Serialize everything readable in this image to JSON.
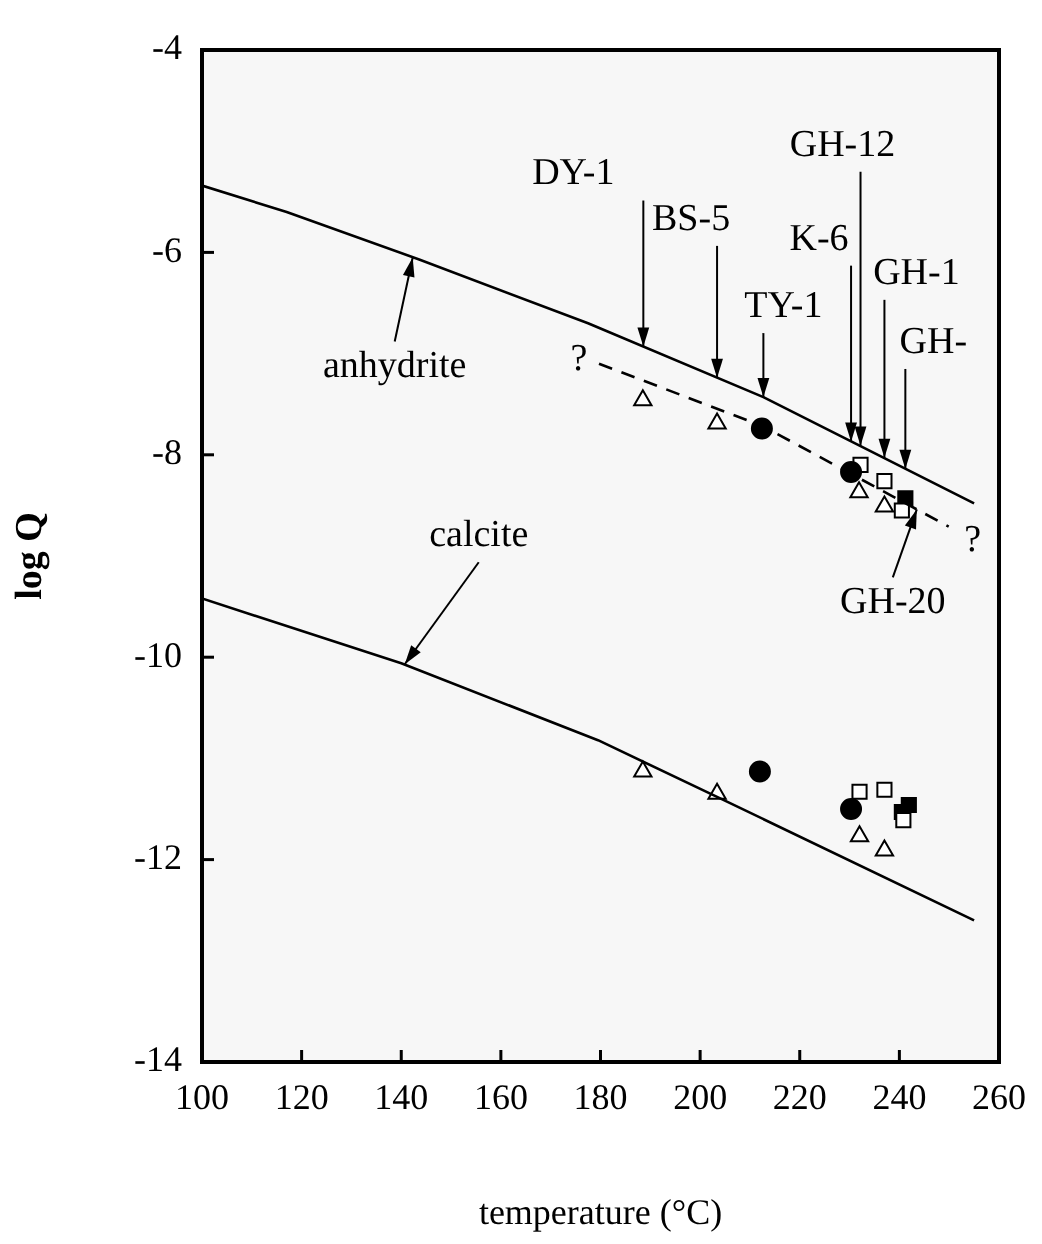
{
  "chart_data": {
    "type": "scatter",
    "xlabel": "temperature (°C)",
    "ylabel": "log Q",
    "xlim": [
      100,
      260
    ],
    "xticks": [
      100,
      120,
      140,
      160,
      180,
      200,
      220,
      240,
      260
    ],
    "ylim": [
      -14,
      -4
    ],
    "yticks": [
      -4,
      -6,
      -8,
      -10,
      -12,
      -14
    ],
    "legend": false,
    "series": [
      {
        "type": "line",
        "color": "#000000",
        "marker": "none",
        "line_style": "solid",
        "x": [
          100,
          117,
          143.6,
          177.5,
          212.7,
          255
        ],
        "values": [
          -5.34,
          -5.6,
          -6.07,
          -6.7,
          -7.43,
          -8.48
        ]
      },
      {
        "type": "line",
        "color": "#000000",
        "marker": "none",
        "line_style": "dashed",
        "x": [
          179.7,
          212.7,
          249.9
        ],
        "values": [
          -7.1,
          -7.72,
          -8.71
        ]
      },
      {
        "type": "line",
        "color": "#000000",
        "marker": "none",
        "line_style": "solid",
        "x": [
          100,
          140,
          179.5,
          203.4,
          255
        ],
        "values": [
          -9.42,
          -10.06,
          -10.82,
          -11.38,
          -12.6
        ]
      },
      {
        "type": "scatter",
        "color": "#ffffff",
        "marker": "triangle",
        "x": [
          188.5,
          203.4,
          231.9,
          237,
          188.5,
          203.4,
          232,
          237
        ],
        "values": [
          -7.46,
          -7.69,
          -8.37,
          -8.51,
          -11.13,
          -11.35,
          -11.77,
          -11.91
        ]
      },
      {
        "type": "scatter",
        "color": "#000000",
        "marker": "circle",
        "x": [
          212.4,
          230.3,
          212,
          230.3
        ],
        "values": [
          -7.74,
          -8.17,
          -11.13,
          -11.5
        ]
      },
      {
        "type": "scatter",
        "color": "#ffffff",
        "marker": "square",
        "x": [
          232.2,
          237,
          240.5,
          232,
          237,
          240.8
        ],
        "values": [
          -8.1,
          -8.26,
          -8.55,
          -11.33,
          -11.31,
          -11.61
        ]
      },
      {
        "type": "scatter",
        "color": "#000000",
        "marker": "square",
        "x": [
          241.2,
          240.5,
          241.9
        ],
        "values": [
          -8.43,
          -11.53,
          -11.46
        ]
      }
    ],
    "annotations": [
      {
        "text": "anhydrite",
        "x": 142.3,
        "y": -6.05
      },
      {
        "text": "calcite",
        "x": 140.7,
        "y": -10.07
      },
      {
        "text": "DY-1",
        "x": 188.6,
        "y": -6.93
      },
      {
        "text": "BS-5",
        "x": 203.4,
        "y": -7.24
      },
      {
        "text": "TY-1",
        "x": 212.7,
        "y": -7.43
      },
      {
        "text": "K-6",
        "x": 230.3,
        "y": -7.87
      },
      {
        "text": "GH-12",
        "x": 232.2,
        "y": -7.91
      },
      {
        "text": "GH-1",
        "x": 237,
        "y": -8.03
      },
      {
        "text": "GH-",
        "x": 241.2,
        "y": -8.14
      },
      {
        "text": "GH-20",
        "x": 243.5,
        "y": -8.54
      },
      {
        "text": "?",
        "x": 179.7,
        "y": -7.1
      },
      {
        "text": "?",
        "x": 249.9,
        "y": -8.71
      }
    ]
  }
}
